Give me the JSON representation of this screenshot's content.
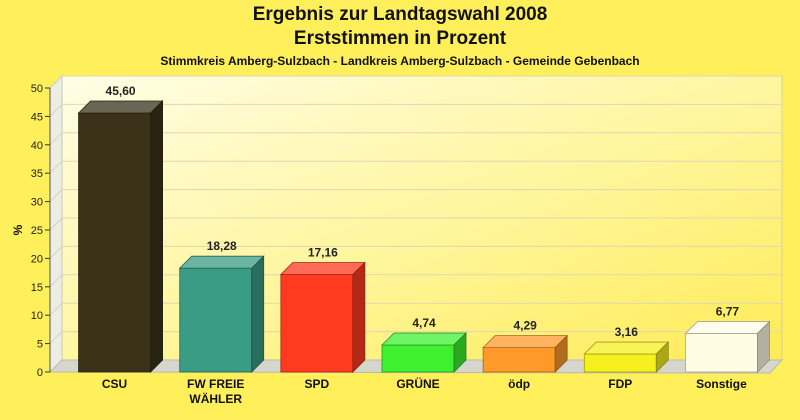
{
  "chart_data": {
    "type": "bar",
    "title": "Ergebnis zur Landtagswahl 2008",
    "subtitle_line": "Erststimmen in Prozent",
    "caption": "Stimmkreis Amberg-Sulzbach - Landkreis Amberg-Sulzbach - Gemeinde Gebenbach",
    "ylabel": "%",
    "xlabel": "",
    "ylim": [
      0,
      50
    ],
    "yticks": [
      0,
      5,
      10,
      15,
      20,
      25,
      30,
      35,
      40,
      45,
      50
    ],
    "categories": [
      "CSU",
      "FW FREIE\nWÄHLER",
      "SPD",
      "GRÜNE",
      "ödp",
      "FDP",
      "Sonstige"
    ],
    "values": [
      45.6,
      18.28,
      17.16,
      4.74,
      4.29,
      3.16,
      6.77
    ],
    "value_labels": [
      "45,60",
      "18,28",
      "17,16",
      "4,74",
      "4,29",
      "3,16",
      "6,77"
    ],
    "colors": [
      "#3A3219",
      "#3A9C84",
      "#FF3A1F",
      "#3EF030",
      "#FF9A2A",
      "#F5F01E",
      "#FFFCE4"
    ],
    "grid": true,
    "legend": "none"
  }
}
